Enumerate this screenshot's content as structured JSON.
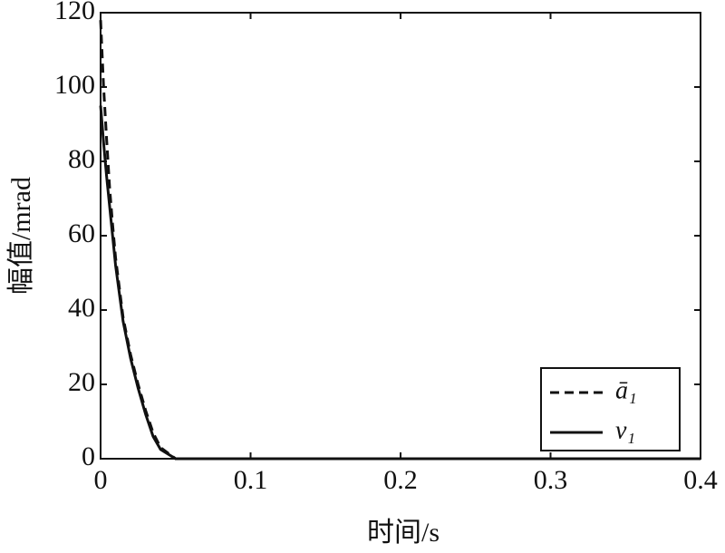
{
  "chart_data": {
    "type": "line",
    "x_label": "时间/s",
    "y_label": "幅值/mrad",
    "x": [
      0,
      0.002,
      0.004,
      0.006,
      0.008,
      0.01,
      0.015,
      0.02,
      0.025,
      0.03,
      0.035,
      0.04,
      0.05,
      0.1,
      0.2,
      0.3,
      0.4
    ],
    "series": [
      {
        "name": "ā₁",
        "color": "#111111",
        "linestyle": "dashed",
        "values": [
          118,
          100,
          86,
          73,
          63,
          54,
          38,
          28,
          20,
          13,
          7,
          3,
          0,
          0,
          0,
          0,
          0
        ]
      },
      {
        "name": "v₁",
        "color": "#111111",
        "linestyle": "solid",
        "values": [
          95,
          85,
          76,
          68,
          60,
          52,
          37,
          27,
          19,
          12,
          6,
          2.5,
          0,
          0,
          0,
          0,
          0
        ]
      }
    ],
    "xlim": [
      0,
      0.4
    ],
    "xticks": [
      0,
      0.1,
      0.2,
      0.3,
      0.4
    ],
    "ylim": [
      0,
      120
    ],
    "yticks": [
      0,
      20,
      40,
      60,
      80,
      100,
      120
    ],
    "grid": false,
    "legend": "lower right"
  }
}
